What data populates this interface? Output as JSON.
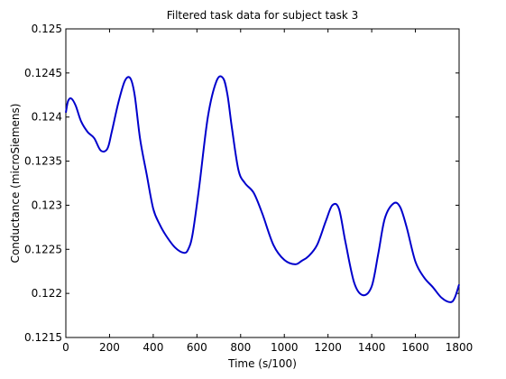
{
  "chart_data": {
    "type": "line",
    "title": "Filtered task data for subject task 3",
    "xlabel": "Time (s/100)",
    "ylabel": "Conductance (microSiemens)",
    "xlim": [
      0,
      1800
    ],
    "ylim": [
      0.1215,
      0.125
    ],
    "xticks": [
      0,
      200,
      400,
      600,
      800,
      1000,
      1200,
      1400,
      1600,
      1800
    ],
    "yticks": [
      0.1215,
      0.122,
      0.1225,
      0.123,
      0.1235,
      0.124,
      0.1245,
      0.125
    ],
    "xtick_labels": [
      "0",
      "200",
      "400",
      "600",
      "800",
      "1000",
      "1200",
      "1400",
      "1600",
      "1800"
    ],
    "ytick_labels": [
      "0.1215",
      "0.122",
      "0.1225",
      "0.123",
      "0.1235",
      "0.124",
      "0.1245",
      "0.125"
    ],
    "grid": false,
    "line_color": "#0000cc",
    "series": [
      {
        "x": [
          0,
          10,
          25,
          45,
          70,
          100,
          130,
          160,
          190,
          210,
          240,
          270,
          295,
          315,
          340,
          370,
          400,
          430,
          460,
          500,
          540,
          560,
          580,
          610,
          650,
          690,
          720,
          740,
          760,
          790,
          820,
          860,
          900,
          950,
          1000,
          1050,
          1080,
          1110,
          1150,
          1190,
          1220,
          1250,
          1280,
          1320,
          1360,
          1400,
          1430,
          1460,
          1500,
          1530,
          1560,
          1600,
          1640,
          1680,
          1720,
          1760,
          1780,
          1800
        ],
        "y": [
          0.12405,
          0.12418,
          0.12421,
          0.12413,
          0.12395,
          0.12383,
          0.12376,
          0.12362,
          0.12364,
          0.12383,
          0.12416,
          0.12441,
          0.12444,
          0.12425,
          0.12375,
          0.12335,
          0.12296,
          0.12278,
          0.12265,
          0.12252,
          0.12246,
          0.1225,
          0.12267,
          0.1232,
          0.124,
          0.12441,
          0.12444,
          0.12425,
          0.12388,
          0.1234,
          0.12325,
          0.12314,
          0.1229,
          0.12255,
          0.12238,
          0.12233,
          0.12237,
          0.12242,
          0.12255,
          0.12282,
          0.123,
          0.12296,
          0.12258,
          0.12212,
          0.12198,
          0.12208,
          0.12245,
          0.12285,
          0.12302,
          0.12298,
          0.12275,
          0.12236,
          0.12218,
          0.12207,
          0.12195,
          0.1219,
          0.12195,
          0.1221
        ]
      }
    ]
  }
}
